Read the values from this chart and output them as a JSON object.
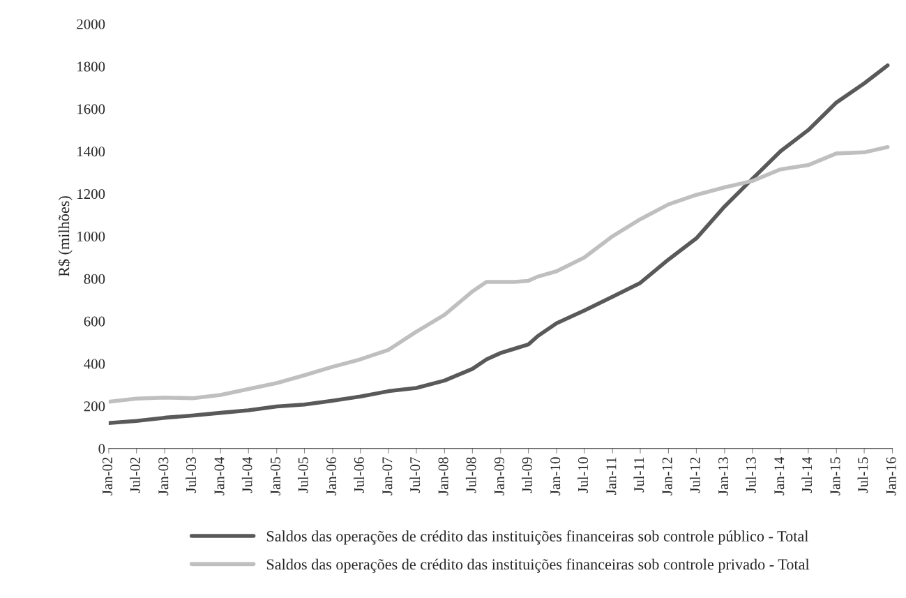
{
  "chart_data": {
    "type": "line",
    "ylabel": "R$ (milhões)",
    "x": [
      "2002-01",
      "2002-07",
      "2003-01",
      "2003-07",
      "2004-01",
      "2004-07",
      "2005-01",
      "2005-07",
      "2006-01",
      "2006-07",
      "2007-01",
      "2007-07",
      "2008-01",
      "2008-07",
      "2008-10",
      "2009-01",
      "2009-04",
      "2009-07",
      "2009-09",
      "2010-01",
      "2010-07",
      "2011-01",
      "2011-07",
      "2012-01",
      "2012-07",
      "2013-01",
      "2013-07",
      "2014-01",
      "2014-07",
      "2015-01",
      "2015-07",
      "2015-12"
    ],
    "series": [
      {
        "name": "Saldos das operações de crédito das instituições financeiras sob controle público - Total",
        "color": "#595959",
        "values": [
          120,
          130,
          145,
          155,
          168,
          180,
          198,
          207,
          225,
          245,
          270,
          285,
          320,
          375,
          420,
          450,
          470,
          490,
          530,
          590,
          650,
          715,
          780,
          890,
          990,
          1140,
          1270,
          1400,
          1500,
          1630,
          1720,
          1805
        ]
      },
      {
        "name": "Saldos das operações de crédito das instituições financeiras sob controle privado - Total",
        "color": "#bfbfbf",
        "values": [
          220,
          235,
          240,
          237,
          252,
          280,
          308,
          345,
          385,
          420,
          465,
          550,
          630,
          740,
          785,
          785,
          785,
          790,
          810,
          835,
          900,
          1000,
          1080,
          1150,
          1195,
          1230,
          1260,
          1315,
          1335,
          1390,
          1395,
          1420
        ]
      }
    ],
    "xlim": [
      "2002-01",
      "2016-01"
    ],
    "xticks": [
      {
        "value": "2002-01",
        "label": "Jan-02"
      },
      {
        "value": "2002-07",
        "label": "Jul-02"
      },
      {
        "value": "2003-01",
        "label": "Jan-03"
      },
      {
        "value": "2003-07",
        "label": "Jul-03"
      },
      {
        "value": "2004-01",
        "label": "Jan-04"
      },
      {
        "value": "2004-07",
        "label": "Jul-04"
      },
      {
        "value": "2005-01",
        "label": "Jan-05"
      },
      {
        "value": "2005-07",
        "label": "Jul-05"
      },
      {
        "value": "2006-01",
        "label": "Jan-06"
      },
      {
        "value": "2006-07",
        "label": "Jul-06"
      },
      {
        "value": "2007-01",
        "label": "Jan-07"
      },
      {
        "value": "2007-07",
        "label": "Jul-07"
      },
      {
        "value": "2008-01",
        "label": "Jan-08"
      },
      {
        "value": "2008-07",
        "label": "Jul-08"
      },
      {
        "value": "2009-01",
        "label": "Jan-09"
      },
      {
        "value": "2009-07",
        "label": "Jul-09"
      },
      {
        "value": "2010-01",
        "label": "Jan-10"
      },
      {
        "value": "2010-07",
        "label": "Jul-10"
      },
      {
        "value": "2011-01",
        "label": "Jan-11"
      },
      {
        "value": "2011-07",
        "label": "Jul-11"
      },
      {
        "value": "2012-01",
        "label": "Jan-12"
      },
      {
        "value": "2012-07",
        "label": "Jul-12"
      },
      {
        "value": "2013-01",
        "label": "Jan-13"
      },
      {
        "value": "2013-07",
        "label": "Jul-13"
      },
      {
        "value": "2014-01",
        "label": "Jan-14"
      },
      {
        "value": "2014-07",
        "label": "Jul-14"
      },
      {
        "value": "2015-01",
        "label": "Jan-15"
      },
      {
        "value": "2015-07",
        "label": "Jul-15"
      },
      {
        "value": "2016-01",
        "label": "Jan-16"
      }
    ],
    "ylim": [
      0,
      2000
    ],
    "yticks": [
      0,
      200,
      400,
      600,
      800,
      1000,
      1200,
      1400,
      1600,
      1800,
      2000
    ],
    "grid": false,
    "legend": "bottom",
    "line_style": "solid",
    "marker": "none"
  }
}
